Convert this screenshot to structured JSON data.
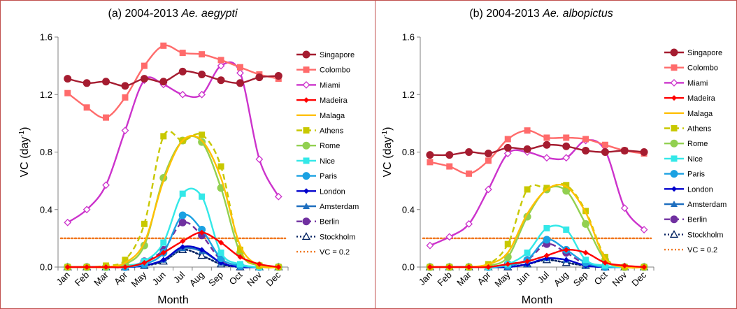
{
  "chart_data": [
    {
      "type": "line",
      "title": "(a)  2004-2013 Ae. aegypti",
      "title_prefix": "(a)  2004-2013 ",
      "title_italic": "Ae. aegypti",
      "xlabel": "Month",
      "ylabel": "VC  (day-1)",
      "ylabel_main": "VC  (day",
      "ylabel_sup": "-1",
      "ylabel_close": ")",
      "ylim": [
        0,
        1.6
      ],
      "yticks": [
        "0.0",
        "0.4",
        "0.8",
        "1.2",
        "1.6"
      ],
      "legend_position": "right",
      "categories": [
        "Jan",
        "Feb",
        "Mar",
        "Apr",
        "May",
        "Jun",
        "Jul",
        "Aug",
        "Sep",
        "Oct",
        "Nov",
        "Dec"
      ],
      "series": [
        {
          "name": "Singapore",
          "color": "#a51c30",
          "marker": "circle",
          "dash": "solid",
          "values": [
            1.31,
            1.28,
            1.29,
            1.26,
            1.31,
            1.29,
            1.36,
            1.34,
            1.3,
            1.28,
            1.32,
            1.33
          ]
        },
        {
          "name": "Colombo",
          "color": "#ff6b6b",
          "marker": "square",
          "dash": "solid",
          "values": [
            1.21,
            1.11,
            1.04,
            1.18,
            1.4,
            1.54,
            1.49,
            1.48,
            1.44,
            1.39,
            1.34,
            1.31
          ]
        },
        {
          "name": "Miami",
          "color": "#cc33cc",
          "marker": "diamond-open",
          "dash": "solid",
          "values": [
            0.31,
            0.4,
            0.57,
            0.95,
            1.3,
            1.27,
            1.2,
            1.2,
            1.4,
            1.35,
            0.75,
            0.49
          ]
        },
        {
          "name": "Madeira",
          "color": "#ff0000",
          "marker": "diamond",
          "dash": "solid",
          "values": [
            0.0,
            0.0,
            0.0,
            0.0,
            0.03,
            0.1,
            0.18,
            0.24,
            0.17,
            0.07,
            0.02,
            0.0
          ]
        },
        {
          "name": "Malaga",
          "color": "#ffc000",
          "marker": "none",
          "dash": "solid",
          "values": [
            0.0,
            0.0,
            0.0,
            0.03,
            0.17,
            0.6,
            0.88,
            0.88,
            0.62,
            0.15,
            0.01,
            0.0
          ]
        },
        {
          "name": "Athens",
          "color": "#c8c800",
          "marker": "square",
          "dash": "dashed",
          "values": [
            0.0,
            0.0,
            0.01,
            0.05,
            0.3,
            0.91,
            0.88,
            0.92,
            0.7,
            0.12,
            0.01,
            0.0
          ]
        },
        {
          "name": "Rome",
          "color": "#92d050",
          "marker": "circle",
          "dash": "solid",
          "values": [
            0.0,
            0.0,
            0.0,
            0.02,
            0.15,
            0.62,
            0.88,
            0.87,
            0.55,
            0.1,
            0.01,
            0.0
          ]
        },
        {
          "name": "Nice",
          "color": "#33e8e8",
          "marker": "square",
          "dash": "solid",
          "values": [
            0.0,
            0.0,
            0.0,
            0.01,
            0.04,
            0.17,
            0.51,
            0.49,
            0.1,
            0.02,
            0.0,
            0.0
          ]
        },
        {
          "name": "Paris",
          "color": "#1ba1e2",
          "marker": "circle",
          "dash": "solid",
          "values": [
            0.0,
            0.0,
            0.0,
            0.0,
            0.02,
            0.1,
            0.36,
            0.26,
            0.06,
            0.01,
            0.0,
            0.0
          ]
        },
        {
          "name": "London",
          "color": "#0000cc",
          "marker": "diamond",
          "dash": "solid",
          "values": [
            0.0,
            0.0,
            0.0,
            0.0,
            0.01,
            0.05,
            0.14,
            0.12,
            0.03,
            0.0,
            0.0,
            0.0
          ]
        },
        {
          "name": "Amsterdam",
          "color": "#1f6fbf",
          "marker": "triangle",
          "dash": "solid",
          "values": [
            0.0,
            0.0,
            0.0,
            0.0,
            0.01,
            0.05,
            0.13,
            0.11,
            0.03,
            0.0,
            0.0,
            0.0
          ]
        },
        {
          "name": "Berlin",
          "color": "#7030a0",
          "marker": "circle",
          "dash": "dashed",
          "values": [
            0.0,
            0.0,
            0.0,
            0.0,
            0.04,
            0.12,
            0.31,
            0.22,
            0.05,
            0.01,
            0.0,
            0.0
          ]
        },
        {
          "name": "Stockholm",
          "color": "#002060",
          "marker": "triangle-open",
          "dash": "dotted",
          "values": [
            0.0,
            0.0,
            0.0,
            0.0,
            0.01,
            0.04,
            0.12,
            0.08,
            0.02,
            0.0,
            0.0,
            0.0
          ]
        },
        {
          "name": "VC = 0.2",
          "color": "#f07820",
          "marker": "none",
          "dash": "dotted",
          "values": [
            0.2,
            0.2,
            0.2,
            0.2,
            0.2,
            0.2,
            0.2,
            0.2,
            0.2,
            0.2,
            0.2,
            0.2
          ]
        }
      ]
    },
    {
      "type": "line",
      "title": "(b)  2004-2013 Ae. albopictus",
      "title_prefix": "(b)  2004-2013 ",
      "title_italic": "Ae. albopictus",
      "xlabel": "Month",
      "ylabel": "VC  (day-1)",
      "ylabel_main": "VC  (day",
      "ylabel_sup": "-1",
      "ylabel_close": ")",
      "ylim": [
        0,
        1.6
      ],
      "yticks": [
        "0.0",
        "0.4",
        "0.8",
        "1.2",
        "1.6"
      ],
      "legend_position": "right",
      "categories": [
        "Jan",
        "Feb",
        "Mar",
        "Apr",
        "May",
        "Jun",
        "Jul",
        "Aug",
        "Sep",
        "Oct",
        "Nov",
        "Dec"
      ],
      "series": [
        {
          "name": "Singapore",
          "color": "#a51c30",
          "marker": "circle",
          "dash": "solid",
          "values": [
            0.78,
            0.78,
            0.8,
            0.79,
            0.83,
            0.82,
            0.85,
            0.84,
            0.81,
            0.8,
            0.81,
            0.8
          ]
        },
        {
          "name": "Colombo",
          "color": "#ff6b6b",
          "marker": "square",
          "dash": "solid",
          "values": [
            0.73,
            0.7,
            0.65,
            0.74,
            0.89,
            0.95,
            0.9,
            0.9,
            0.89,
            0.85,
            0.81,
            0.79
          ]
        },
        {
          "name": "Miami",
          "color": "#cc33cc",
          "marker": "diamond-open",
          "dash": "solid",
          "values": [
            0.15,
            0.21,
            0.3,
            0.54,
            0.79,
            0.8,
            0.76,
            0.76,
            0.88,
            0.81,
            0.41,
            0.26
          ]
        },
        {
          "name": "Madeira",
          "color": "#ff0000",
          "marker": "diamond",
          "dash": "solid",
          "values": [
            0.0,
            0.0,
            0.0,
            0.0,
            0.02,
            0.04,
            0.08,
            0.12,
            0.1,
            0.03,
            0.01,
            0.0
          ]
        },
        {
          "name": "Malaga",
          "color": "#ffc000",
          "marker": "none",
          "dash": "solid",
          "values": [
            0.0,
            0.0,
            0.0,
            0.02,
            0.1,
            0.37,
            0.54,
            0.56,
            0.38,
            0.06,
            0.0,
            0.0
          ]
        },
        {
          "name": "Athens",
          "color": "#c8c800",
          "marker": "square",
          "dash": "dashed",
          "values": [
            0.0,
            0.0,
            0.0,
            0.02,
            0.16,
            0.54,
            0.55,
            0.57,
            0.39,
            0.07,
            0.0,
            0.0
          ]
        },
        {
          "name": "Rome",
          "color": "#92d050",
          "marker": "circle",
          "dash": "solid",
          "values": [
            0.0,
            0.0,
            0.0,
            0.01,
            0.07,
            0.35,
            0.54,
            0.53,
            0.3,
            0.05,
            0.0,
            0.0
          ]
        },
        {
          "name": "Nice",
          "color": "#33e8e8",
          "marker": "square",
          "dash": "solid",
          "values": [
            0.0,
            0.0,
            0.0,
            0.0,
            0.02,
            0.1,
            0.27,
            0.26,
            0.05,
            0.01,
            0.0,
            0.0
          ]
        },
        {
          "name": "Paris",
          "color": "#1ba1e2",
          "marker": "circle",
          "dash": "solid",
          "values": [
            0.0,
            0.0,
            0.0,
            0.0,
            0.01,
            0.05,
            0.19,
            0.12,
            0.03,
            0.0,
            0.0,
            0.0
          ]
        },
        {
          "name": "London",
          "color": "#0000cc",
          "marker": "diamond",
          "dash": "solid",
          "values": [
            0.0,
            0.0,
            0.0,
            0.0,
            0.0,
            0.02,
            0.06,
            0.05,
            0.01,
            0.0,
            0.0,
            0.0
          ]
        },
        {
          "name": "Amsterdam",
          "color": "#1f6fbf",
          "marker": "triangle",
          "dash": "solid",
          "values": [
            0.0,
            0.0,
            0.0,
            0.0,
            0.0,
            0.02,
            0.06,
            0.05,
            0.01,
            0.0,
            0.0,
            0.0
          ]
        },
        {
          "name": "Berlin",
          "color": "#7030a0",
          "marker": "circle",
          "dash": "dashed",
          "values": [
            0.0,
            0.0,
            0.0,
            0.0,
            0.02,
            0.05,
            0.16,
            0.1,
            0.02,
            0.0,
            0.0,
            0.0
          ]
        },
        {
          "name": "Stockholm",
          "color": "#002060",
          "marker": "triangle-open",
          "dash": "dotted",
          "values": [
            0.0,
            0.0,
            0.0,
            0.0,
            0.0,
            0.02,
            0.05,
            0.03,
            0.01,
            0.0,
            0.0,
            0.0
          ]
        },
        {
          "name": "VC = 0.2",
          "color": "#f07820",
          "marker": "none",
          "dash": "dotted",
          "values": [
            0.2,
            0.2,
            0.2,
            0.2,
            0.2,
            0.2,
            0.2,
            0.2,
            0.2,
            0.2,
            0.2,
            0.2
          ]
        }
      ]
    }
  ]
}
